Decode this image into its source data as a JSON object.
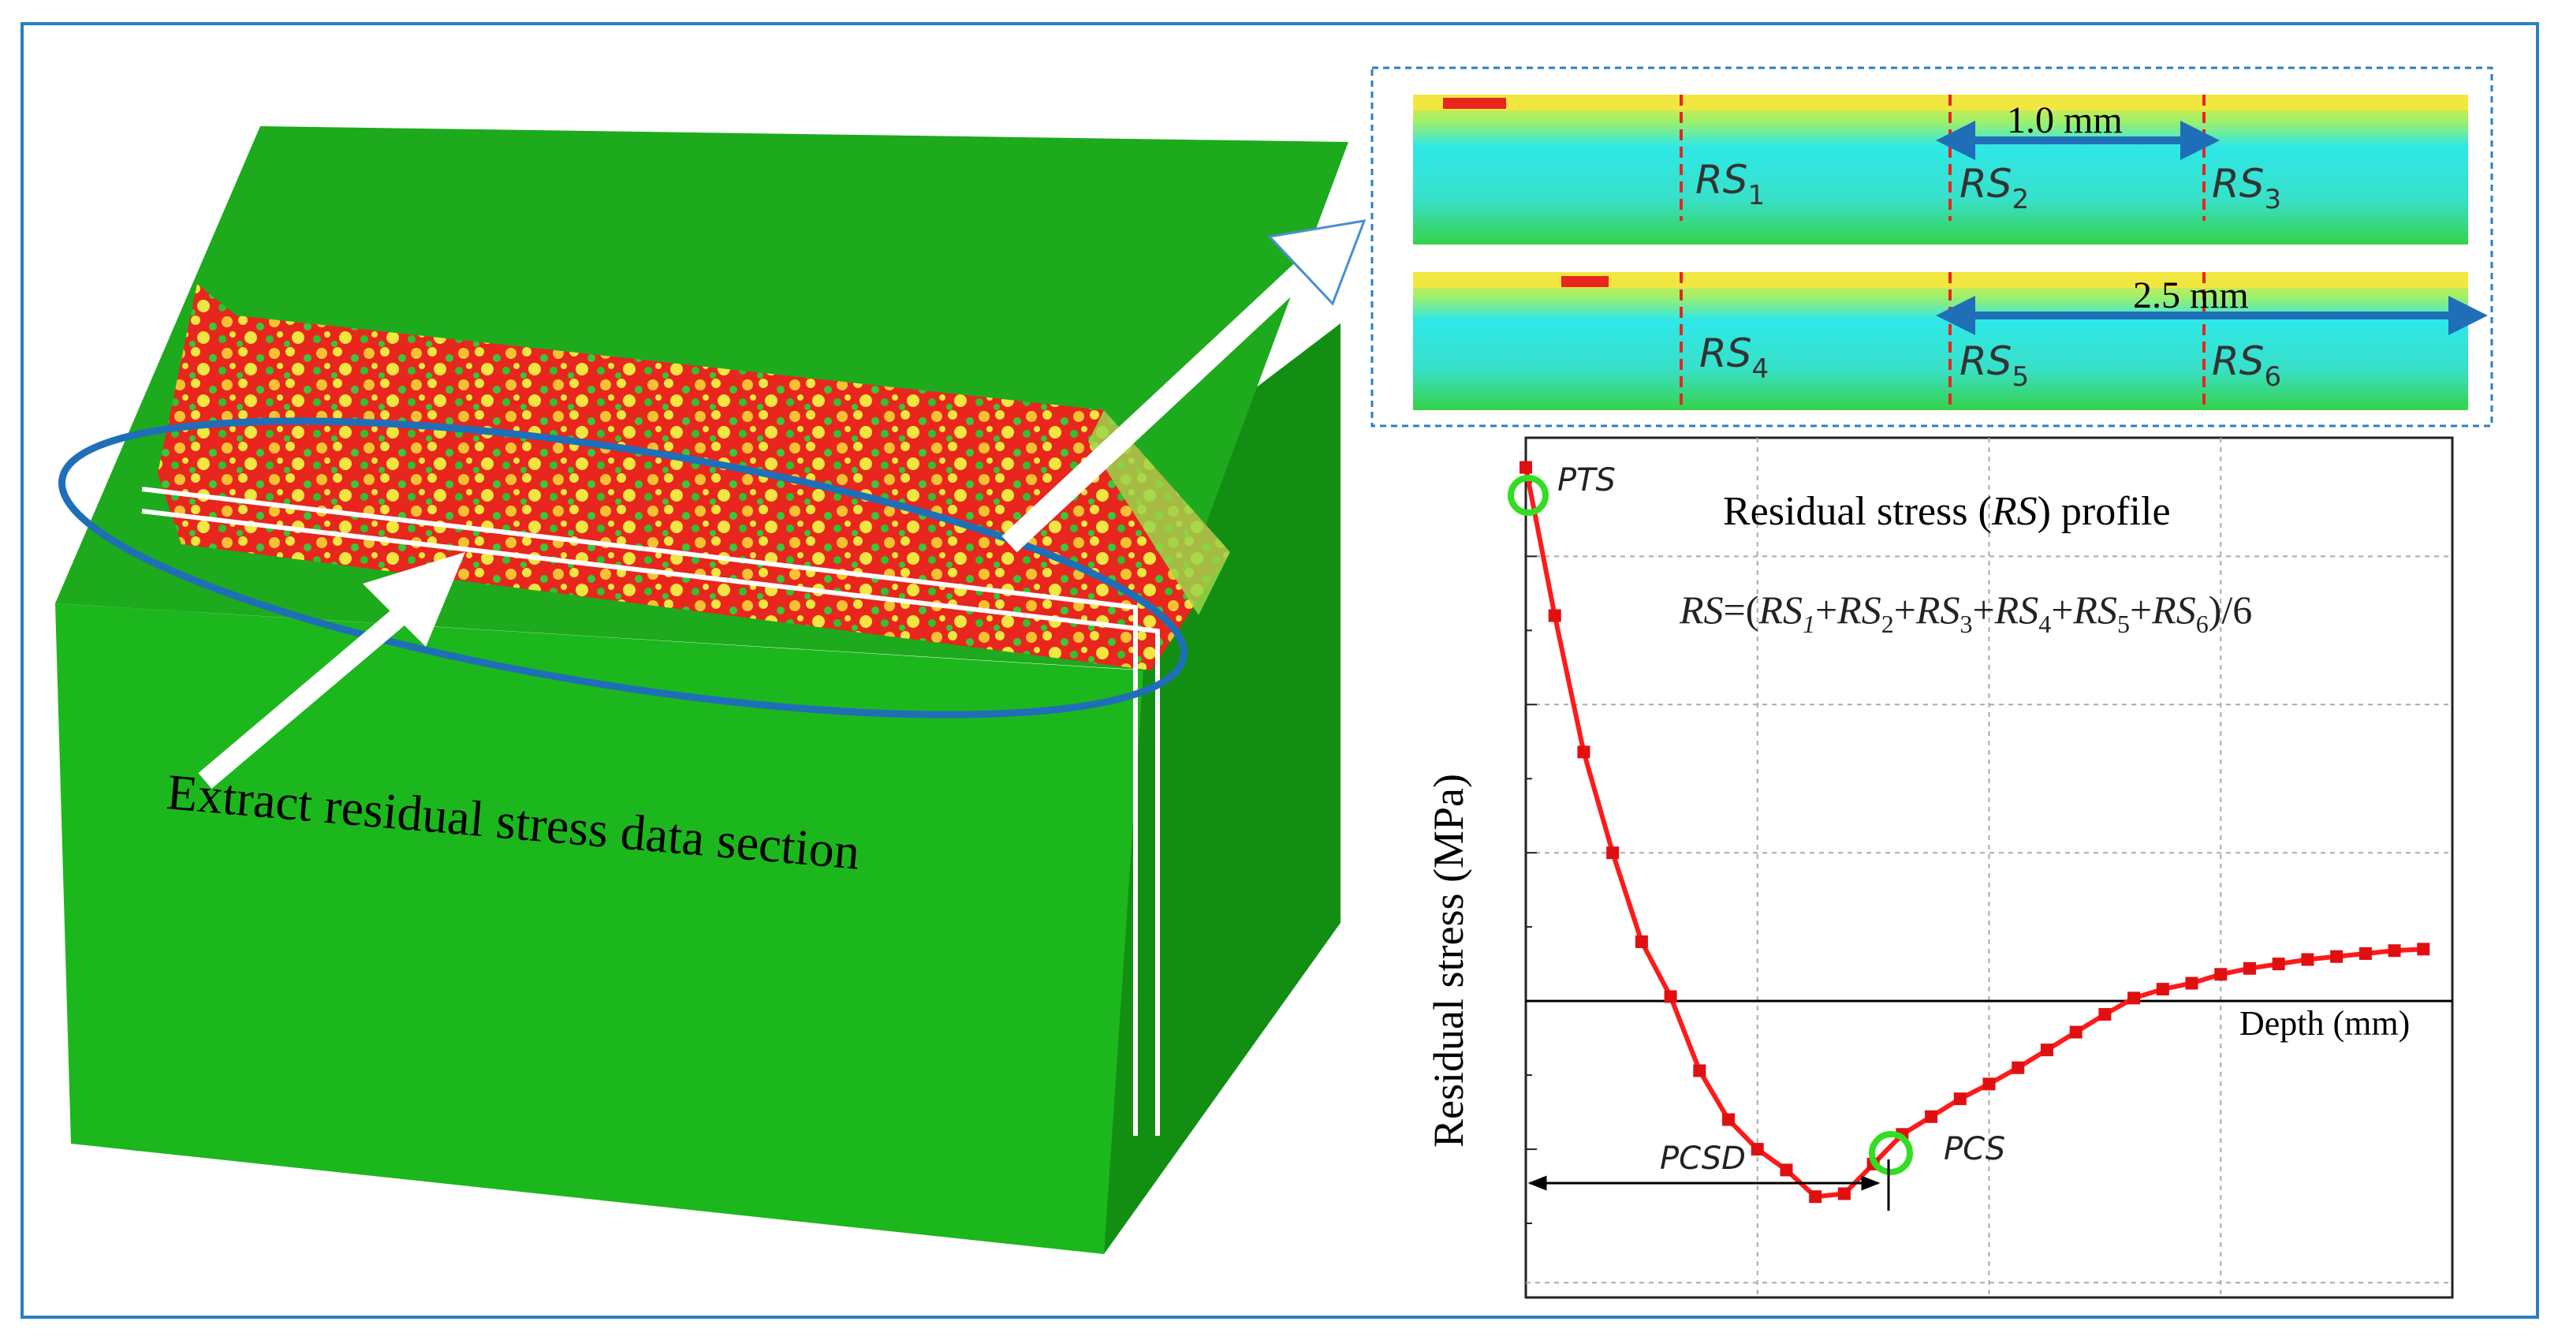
{
  "callout_label": "Extract residual stress data section",
  "strips": {
    "markers": [
      "RS",
      "RS",
      "RS",
      "RS",
      "RS",
      "RS"
    ],
    "marker_subscripts": [
      "1",
      "2",
      "3",
      "4",
      "5",
      "6"
    ],
    "spacing_top": "1.0 mm",
    "spacing_bottom": "2.5 mm"
  },
  "profile": {
    "title_prefix": "Residual stress (",
    "title_symbol": "RS",
    "title_suffix": ") profile",
    "formula": {
      "lhs": "RS",
      "equals_open": "=(",
      "terms": [
        "RS",
        "RS",
        "RS",
        "RS",
        "RS",
        "RS"
      ],
      "subscripts": [
        "1",
        "2",
        "3",
        "4",
        "5",
        "6"
      ],
      "plus": "+",
      "close": ")/6"
    },
    "ylabel": "Residual stress (MPa)",
    "xlabel": "Depth (mm)",
    "annotations": {
      "pts": "PTS",
      "pcs": "PCS",
      "pcsd": "PCSD"
    }
  },
  "colors": {
    "frame": "#2a7fc1",
    "block": "#1cb71c",
    "block_dark": "#128f12",
    "stress_red": "#e8261e",
    "stress_yellow": "#f2e640",
    "stress_cyan": "#2ee8e8",
    "curve": "#ff1a1a",
    "highlight_ring": "#33dd22",
    "arrow_blue": "#1f6fb8"
  },
  "chart_data": {
    "type": "line",
    "title": "Residual stress (RS) profile",
    "xlabel": "Depth (mm)",
    "ylabel": "Residual stress (MPa)",
    "grid": true,
    "tick_labels_shown": false,
    "note": "relative units; axes carry no numeric tick labels",
    "series": [
      {
        "x": [
          0.0,
          0.25,
          0.5,
          0.75,
          1.0,
          1.25,
          1.5,
          1.75,
          2.0,
          2.25,
          2.5,
          2.75,
          3.0,
          3.25,
          3.5,
          3.75,
          4.0,
          4.25,
          4.5,
          4.75,
          5.0,
          5.25,
          5.5,
          5.75,
          6.0,
          6.25,
          6.5,
          6.75,
          7.0,
          7.25,
          7.5,
          7.75
        ],
        "y": [
          3.6,
          2.6,
          1.68,
          1.0,
          0.4,
          0.03,
          -0.47,
          -0.8,
          -1.0,
          -1.14,
          -1.32,
          -1.3,
          -1.1,
          -0.9,
          -0.78,
          -0.66,
          -0.56,
          -0.45,
          -0.33,
          -0.21,
          -0.09,
          0.02,
          0.08,
          0.12,
          0.18,
          0.22,
          0.25,
          0.28,
          0.3,
          0.32,
          0.34,
          0.35
        ]
      }
    ]
  }
}
